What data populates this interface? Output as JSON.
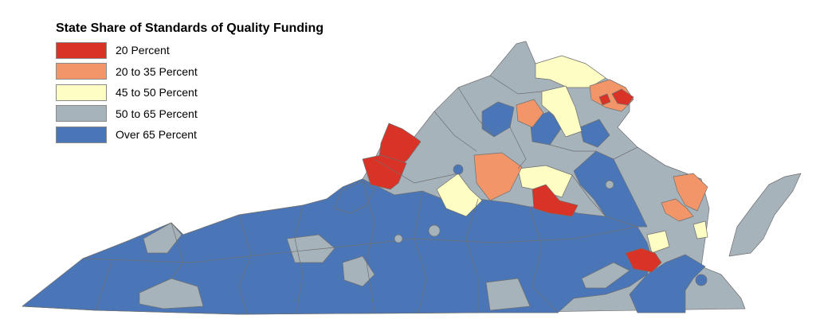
{
  "legend": {
    "title": "State Share of Standards of Quality Funding",
    "items": [
      {
        "key": "red",
        "label": "20 Percent",
        "color": "#d93327"
      },
      {
        "key": "orange",
        "label": "20 to 35 Percent",
        "color": "#f2966a"
      },
      {
        "key": "yellow",
        "label": "45 to 50 Percent",
        "color": "#fefdc4"
      },
      {
        "key": "gray",
        "label": "50 to 65 Percent",
        "color": "#a7b3bb"
      },
      {
        "key": "blue",
        "label": "Over 65 Percent",
        "color": "#4a76b8"
      }
    ]
  },
  "map": {
    "boundary_color": "#6f6f6f",
    "background": "#ffffff"
  }
}
